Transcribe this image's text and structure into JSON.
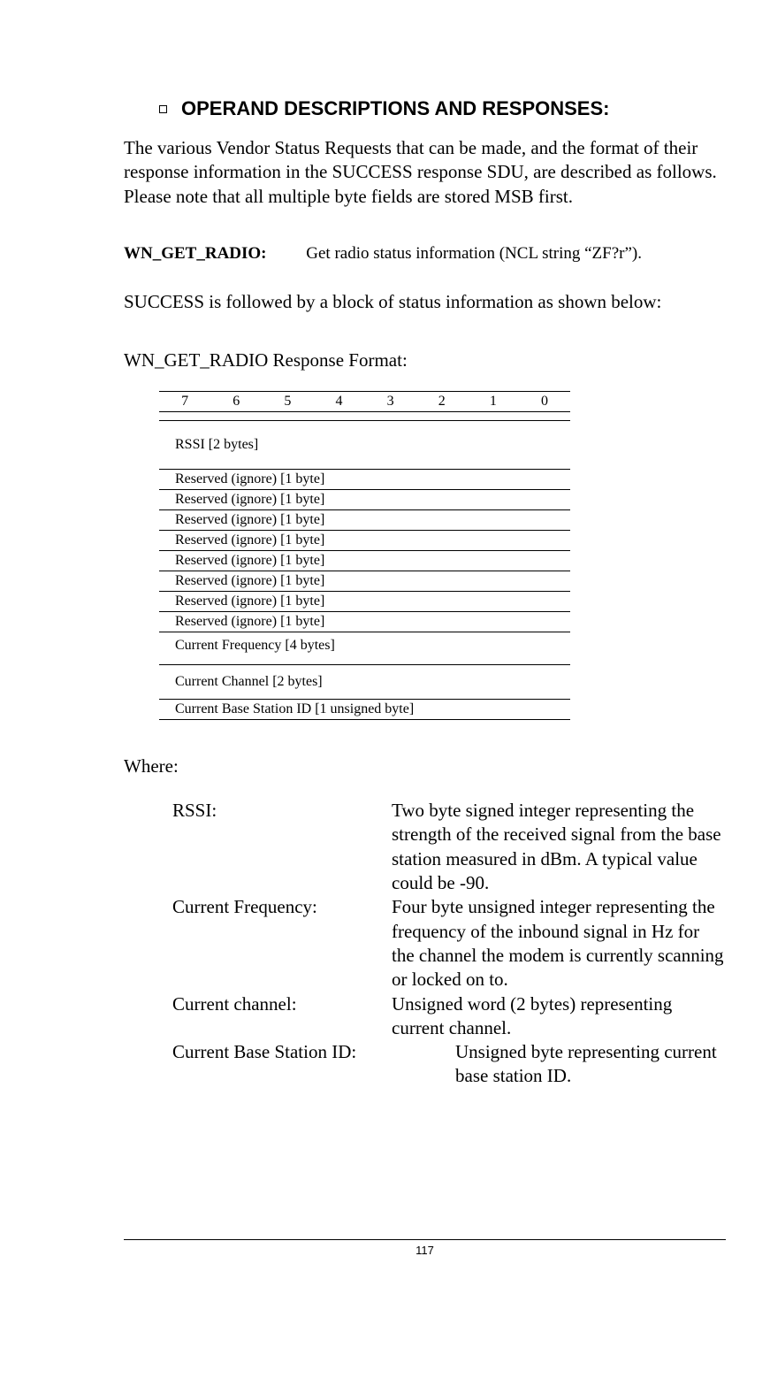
{
  "section": {
    "title": "OPERAND DESCRIPTIONS AND RESPONSES:"
  },
  "intro": "The various Vendor Status Requests that can be made, and the format of their response information in the SUCCESS response SDU, are described as follows.  Please note that all multiple byte fields are stored MSB first.",
  "command": {
    "name": "WN_GET_RADIO:",
    "description": "Get radio status information (NCL string “ZF?r”)."
  },
  "success_text": "SUCCESS is followed by a block of status information as shown below:",
  "format_title": "WN_GET_RADIO Response Format:",
  "bit_labels": [
    "7",
    "6",
    "5",
    "4",
    "3",
    "2",
    "1",
    "0"
  ],
  "rows": {
    "rssi": "RSSI [2 bytes]",
    "res1": "Reserved (ignore)  [1 byte]",
    "res2": "Reserved (ignore) [1 byte]",
    "res3": "Reserved (ignore) [1 byte]",
    "res4": "Reserved (ignore) [1 byte]",
    "res5": "Reserved (ignore) [1 byte]",
    "res6": "Reserved (ignore) [1 byte]",
    "res7": "Reserved (ignore) [1 byte]",
    "res8": "Reserved (ignore) [1 byte]",
    "freq": "Current Frequency [4 bytes]",
    "chan": "Current Channel [2 bytes]",
    "bsid": "Current Base Station ID  [1 unsigned byte]"
  },
  "where_label": "Where:",
  "definitions": {
    "rssi": {
      "term": "RSSI:",
      "desc": "Two byte signed integer representing the strength of the received signal from the base station measured in dBm.  A typical value could be -90."
    },
    "freq": {
      "term": "Current Frequency:",
      "desc": "Four byte unsigned integer representing the frequency of the inbound signal in Hz for the channel the modem is currently scanning or locked on to."
    },
    "chan": {
      "term": "Current channel:",
      "desc": "Unsigned word (2 bytes) representing current  channel."
    },
    "bsid": {
      "term": "Current  Base Station ID:",
      "desc": "Unsigned byte representing current base station ID."
    }
  },
  "footer": {
    "page": "117"
  }
}
